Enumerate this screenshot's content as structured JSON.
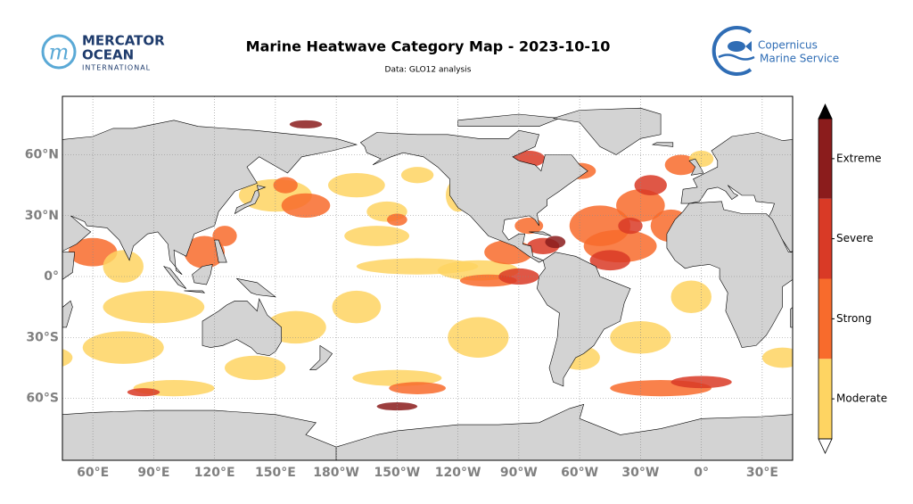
{
  "header": {
    "title": "Marine Heatwave Category Map - 2023-10-10",
    "subtitle": "Data: GLO12 analysis"
  },
  "logos": {
    "left": [
      "MERCATOR",
      "OCEAN",
      "INTERNATIONAL"
    ],
    "right": [
      "Copernicus",
      "Marine Service"
    ]
  },
  "map": {
    "lat_labels": [
      "60°N",
      "30°N",
      "0°",
      "30°S",
      "60°S"
    ],
    "lon_labels": [
      "60°E",
      "90°E",
      "120°E",
      "150°E",
      "180°W",
      "150°W",
      "120°W",
      "90°W",
      "60°W",
      "30°W",
      "0°",
      "30°E"
    ]
  },
  "colorbar": {
    "categories": [
      {
        "label": "Moderate",
        "color": "#fed462"
      },
      {
        "label": "Strong",
        "color": "#f86b2c"
      },
      {
        "label": "Severe",
        "color": "#d93a26"
      },
      {
        "label": "Extreme",
        "color": "#8b1c1c"
      }
    ]
  }
}
